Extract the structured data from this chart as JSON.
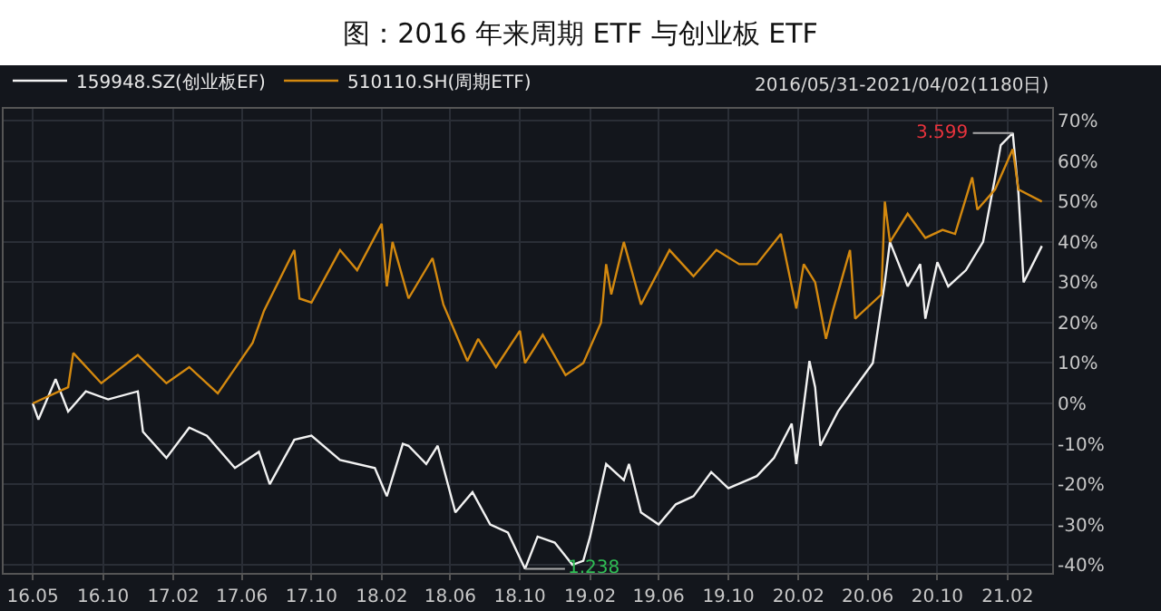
{
  "chart_data": {
    "type": "line",
    "title": "图：2016 年来周期 ETF 与创业板 ETF",
    "legend": "top left",
    "grid": true,
    "marker": "none",
    "line_style": "solid",
    "xlim": [
      "2016-04-10",
      "2021-04-20"
    ],
    "xticks": [
      {
        "value": "2016-05-31",
        "label": "16.05"
      },
      {
        "value": "2016-10-01",
        "label": "16.10"
      },
      {
        "value": "2017-02-01",
        "label": "17.02"
      },
      {
        "value": "2017-06-01",
        "label": "17.06"
      },
      {
        "value": "2017-10-01",
        "label": "17.10"
      },
      {
        "value": "2018-02-01",
        "label": "18.02"
      },
      {
        "value": "2018-06-01",
        "label": "18.06"
      },
      {
        "value": "2018-10-01",
        "label": "18.10"
      },
      {
        "value": "2019-02-01",
        "label": "19.02"
      },
      {
        "value": "2019-06-01",
        "label": "19.06"
      },
      {
        "value": "2019-10-01",
        "label": "19.10"
      },
      {
        "value": "2020-02-01",
        "label": "20.02"
      },
      {
        "value": "2020-06-01",
        "label": "20.06"
      },
      {
        "value": "2020-10-01",
        "label": "20.10"
      },
      {
        "value": "2021-02-01",
        "label": "21.02"
      }
    ],
    "ylim": [
      -42,
      73
    ],
    "yticks": [
      {
        "value": -40,
        "label": "-40%"
      },
      {
        "value": -30,
        "label": "-30%"
      },
      {
        "value": -20,
        "label": "-20%"
      },
      {
        "value": -10,
        "label": "-10%"
      },
      {
        "value": 0,
        "label": "0%"
      },
      {
        "value": 10,
        "label": "10%"
      },
      {
        "value": 20,
        "label": "20%"
      },
      {
        "value": 30,
        "label": "30%"
      },
      {
        "value": 40,
        "label": "40%"
      },
      {
        "value": 50,
        "label": "50%"
      },
      {
        "value": 60,
        "label": "60%"
      },
      {
        "value": 70,
        "label": "70%"
      }
    ],
    "annotations": [
      "2016/05/31-2021/04/02(1180日)",
      {
        "text": "3.599",
        "x": "2021-02-10",
        "y": 67
      },
      {
        "text": "1.238",
        "x": "2018-10-10",
        "y": -41
      }
    ],
    "series": [
      {
        "name": "159948.SZ(创业板EF)",
        "color": "#f2f2f2",
        "x": [
          "2016-05-31",
          "2016-06-10",
          "2016-07-10",
          "2016-08-01",
          "2016-09-01",
          "2016-10-10",
          "2016-12-01",
          "2016-12-10",
          "2017-01-20",
          "2017-03-01",
          "2017-04-01",
          "2017-05-20",
          "2017-07-01",
          "2017-07-20",
          "2017-09-01",
          "2017-10-01",
          "2017-11-20",
          "2018-01-20",
          "2018-02-10",
          "2018-03-10",
          "2018-03-20",
          "2018-04-20",
          "2018-05-10",
          "2018-06-10",
          "2018-07-10",
          "2018-08-10",
          "2018-09-10",
          "2018-10-10",
          "2018-11-01",
          "2018-12-01",
          "2019-01-01",
          "2019-01-20",
          "2019-02-01",
          "2019-03-01",
          "2019-04-01",
          "2019-04-10",
          "2019-05-01",
          "2019-06-01",
          "2019-07-01",
          "2019-08-01",
          "2019-09-01",
          "2019-10-01",
          "2019-11-20",
          "2019-12-20",
          "2020-01-20",
          "2020-01-28",
          "2020-02-20",
          "2020-03-01",
          "2020-03-10",
          "2020-04-10",
          "2020-05-10",
          "2020-06-10",
          "2020-07-01",
          "2020-07-10",
          "2020-08-10",
          "2020-09-01",
          "2020-09-10",
          "2020-10-01",
          "2020-10-20",
          "2020-11-20",
          "2020-12-20",
          "2021-01-10",
          "2021-01-20",
          "2021-02-10",
          "2021-02-20",
          "2021-03-01",
          "2021-04-02"
        ],
        "values": [
          0,
          -4,
          6,
          -2,
          3,
          1,
          3,
          -7,
          -13.5,
          -6,
          -8,
          -16,
          -12,
          -20,
          -9,
          -8,
          -14,
          -16,
          -23,
          -10,
          -10.5,
          -15,
          -10.5,
          -27,
          -22,
          -30,
          -32,
          -41,
          -33,
          -34.5,
          -40,
          -39,
          -33,
          -15,
          -19,
          -15,
          -27,
          -30,
          -25,
          -23,
          -17,
          -21,
          -18,
          -13.5,
          -5,
          -15,
          10.5,
          4,
          -10.5,
          -2,
          4,
          10,
          30,
          40,
          29,
          34.5,
          21,
          35,
          29,
          33,
          40,
          56,
          64,
          67,
          52,
          30,
          39
        ]
      },
      {
        "name": "510110.SH(周期ETF)",
        "color": "#d4890f",
        "x": [
          "2016-05-31",
          "2016-08-01",
          "2016-08-10",
          "2016-09-28",
          "2016-12-01",
          "2017-01-20",
          "2017-03-01",
          "2017-04-20",
          "2017-06-20",
          "2017-07-10",
          "2017-09-01",
          "2017-09-10",
          "2017-10-01",
          "2017-11-20",
          "2017-12-20",
          "2018-02-01",
          "2018-02-10",
          "2018-02-20",
          "2018-03-20",
          "2018-05-01",
          "2018-05-20",
          "2018-07-01",
          "2018-07-20",
          "2018-08-20",
          "2018-10-01",
          "2018-10-10",
          "2018-11-10",
          "2018-12-20",
          "2019-01-20",
          "2019-02-20",
          "2019-03-01",
          "2019-03-10",
          "2019-04-01",
          "2019-05-01",
          "2019-06-20",
          "2019-08-01",
          "2019-09-10",
          "2019-10-20",
          "2019-11-20",
          "2020-01-01",
          "2020-01-28",
          "2020-02-10",
          "2020-03-01",
          "2020-03-20",
          "2020-04-01",
          "2020-05-01",
          "2020-05-10",
          "2020-06-25",
          "2020-07-01",
          "2020-07-10",
          "2020-08-10",
          "2020-09-10",
          "2020-10-10",
          "2020-11-01",
          "2020-12-01",
          "2020-12-10",
          "2021-01-10",
          "2021-02-10",
          "2021-02-20",
          "2021-04-02"
        ],
        "values": [
          0,
          4,
          12.5,
          5,
          12,
          5,
          9,
          2.5,
          15,
          23,
          38,
          26,
          25,
          38,
          33,
          44.5,
          29,
          40,
          26,
          36,
          24.5,
          10.5,
          16,
          9,
          18,
          10,
          17,
          7,
          10,
          20,
          34.5,
          27,
          40,
          24.5,
          38,
          31.5,
          38,
          34.5,
          34.5,
          42,
          23.5,
          34.5,
          30,
          16,
          23,
          38,
          21,
          27,
          50,
          40,
          47,
          41,
          43,
          42,
          56,
          48,
          53,
          63,
          53,
          50
        ]
      }
    ]
  }
}
